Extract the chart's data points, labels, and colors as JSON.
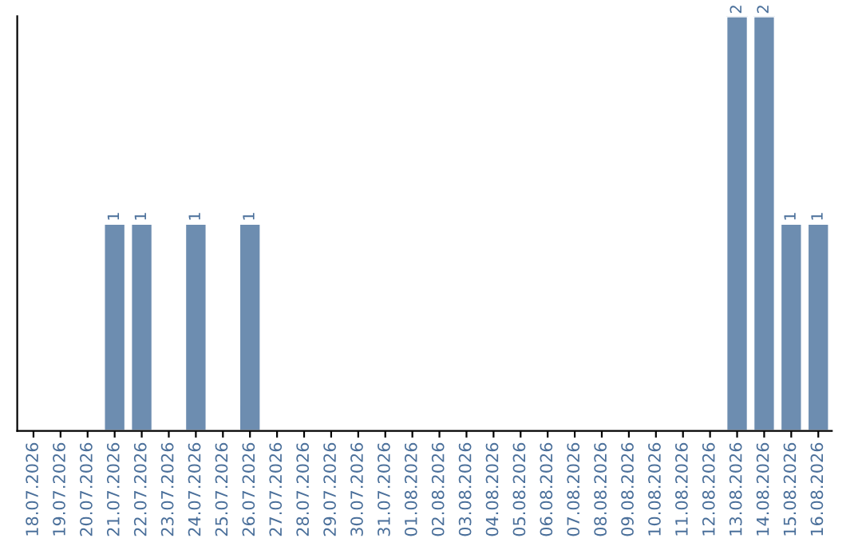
{
  "chart_data": {
    "type": "bar",
    "categories": [
      "18.07.2026",
      "19.07.2026",
      "20.07.2026",
      "21.07.2026",
      "22.07.2026",
      "23.07.2026",
      "24.07.2026",
      "25.07.2026",
      "26.07.2026",
      "27.07.2026",
      "28.07.2026",
      "29.07.2026",
      "30.07.2026",
      "31.07.2026",
      "01.08.2026",
      "02.08.2026",
      "03.08.2026",
      "04.08.2026",
      "05.08.2026",
      "06.08.2026",
      "07.08.2026",
      "08.08.2026",
      "09.08.2026",
      "10.08.2026",
      "11.08.2026",
      "12.08.2026",
      "13.08.2026",
      "14.08.2026",
      "15.08.2026",
      "16.08.2026"
    ],
    "values": [
      null,
      null,
      null,
      1,
      1,
      null,
      1,
      null,
      1,
      null,
      null,
      null,
      null,
      null,
      null,
      null,
      null,
      null,
      null,
      null,
      null,
      null,
      null,
      null,
      null,
      null,
      2,
      2,
      1,
      1
    ],
    "value_labels": [
      null,
      null,
      null,
      "1",
      "1",
      null,
      "1",
      null,
      "1",
      null,
      null,
      null,
      null,
      null,
      null,
      null,
      null,
      null,
      null,
      null,
      null,
      null,
      null,
      null,
      null,
      null,
      "2",
      "2",
      "1",
      "1"
    ],
    "color": "#6d8db0",
    "ylim": [
      0,
      2
    ],
    "tick_labels": "x",
    "grid": false,
    "legend": false
  }
}
